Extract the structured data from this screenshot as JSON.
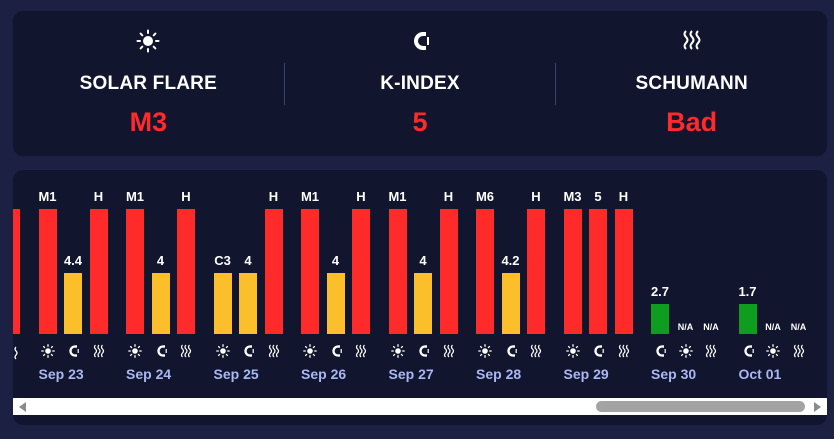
{
  "summary": {
    "solar": {
      "icon": "sun-icon",
      "label": "SOLAR FLARE",
      "value": "M3"
    },
    "kindex": {
      "icon": "magnet-icon",
      "label": "K-INDEX",
      "value": "5"
    },
    "schumann": {
      "icon": "waves-icon",
      "label": "SCHUMANN",
      "value": "Bad"
    }
  },
  "colors": {
    "red": "#ff2a2a",
    "yellow": "#fbbf2b",
    "green": "#0f9d1f",
    "date": "#aab7f2"
  },
  "days": [
    {
      "date": "Sep 23",
      "bars": [
        {
          "label": "M1",
          "level": 1.0,
          "color": "red"
        },
        {
          "label": "4.4",
          "level": 0.49,
          "color": "yellow"
        },
        {
          "label": "H",
          "level": 1.0,
          "color": "red"
        }
      ]
    },
    {
      "date": "Sep 24",
      "bars": [
        {
          "label": "M1",
          "level": 1.0,
          "color": "red"
        },
        {
          "label": "4",
          "level": 0.49,
          "color": "yellow"
        },
        {
          "label": "H",
          "level": 1.0,
          "color": "red"
        }
      ]
    },
    {
      "date": "Sep 25",
      "bars": [
        {
          "label": "C3",
          "level": 0.49,
          "color": "yellow"
        },
        {
          "label": "4",
          "level": 0.49,
          "color": "yellow"
        },
        {
          "label": "H",
          "level": 1.0,
          "color": "red"
        }
      ]
    },
    {
      "date": "Sep 26",
      "bars": [
        {
          "label": "M1",
          "level": 1.0,
          "color": "red"
        },
        {
          "label": "4",
          "level": 0.49,
          "color": "yellow"
        },
        {
          "label": "H",
          "level": 1.0,
          "color": "red"
        }
      ]
    },
    {
      "date": "Sep 27",
      "bars": [
        {
          "label": "M1",
          "level": 1.0,
          "color": "red"
        },
        {
          "label": "4",
          "level": 0.49,
          "color": "yellow"
        },
        {
          "label": "H",
          "level": 1.0,
          "color": "red"
        }
      ]
    },
    {
      "date": "Sep 28",
      "bars": [
        {
          "label": "M6",
          "level": 1.0,
          "color": "red"
        },
        {
          "label": "4.2",
          "level": 0.49,
          "color": "yellow"
        },
        {
          "label": "H",
          "level": 1.0,
          "color": "red"
        }
      ]
    },
    {
      "date": "Sep 29",
      "bars": [
        {
          "label": "M3",
          "level": 1.0,
          "color": "red"
        },
        {
          "label": "5",
          "level": 1.0,
          "color": "red"
        },
        {
          "label": "H",
          "level": 1.0,
          "color": "red"
        }
      ]
    },
    {
      "date": "Sep 30",
      "bars": [
        {
          "label": "2.7",
          "level": 0.24,
          "color": "green"
        },
        {
          "label": "N/A",
          "level": 0,
          "color": "none"
        },
        {
          "label": "N/A",
          "level": 0,
          "color": "none"
        }
      ],
      "icons": [
        "magnet-icon",
        "sun-icon",
        "waves-icon"
      ]
    },
    {
      "date": "Oct 01",
      "bars": [
        {
          "label": "1.7",
          "level": 0.24,
          "color": "green"
        },
        {
          "label": "N/A",
          "level": 0,
          "color": "none"
        },
        {
          "label": "N/A",
          "level": 0,
          "color": "none"
        }
      ],
      "icons": [
        "magnet-icon",
        "sun-icon",
        "waves-icon"
      ]
    }
  ],
  "default_icons": [
    "sun-icon",
    "magnet-icon",
    "waves-icon"
  ]
}
